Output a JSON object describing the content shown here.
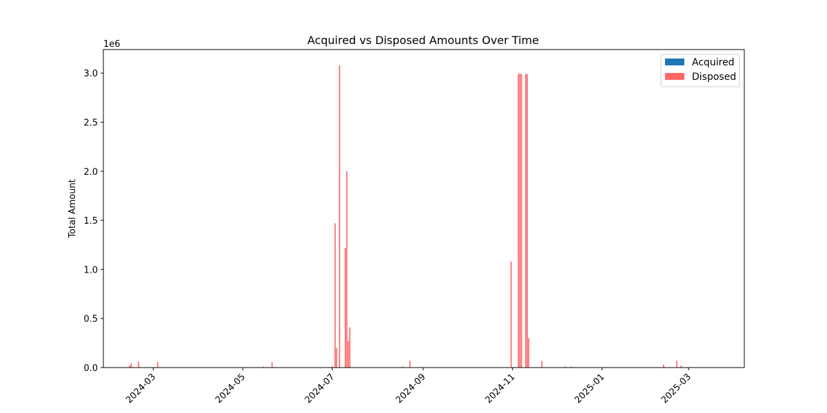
{
  "chart_data": {
    "type": "bar",
    "title": "Acquired vs Disposed Amounts Over Time",
    "xlabel": "",
    "ylabel": "Total Amount",
    "y_offset_label": "1e6",
    "xlim": [
      "2024-01-27",
      "2025-04-08"
    ],
    "ylim": [
      0,
      3240000
    ],
    "x_ticks": [
      {
        "date": "2024-03-01",
        "label": "2024-03"
      },
      {
        "date": "2024-05-01",
        "label": "2024-05"
      },
      {
        "date": "2024-07-01",
        "label": "2024-07"
      },
      {
        "date": "2024-09-01",
        "label": "2024-09"
      },
      {
        "date": "2024-11-01",
        "label": "2024-11"
      },
      {
        "date": "2025-01-01",
        "label": "2025-01"
      },
      {
        "date": "2025-03-01",
        "label": "2025-03"
      }
    ],
    "y_ticks": [
      {
        "value": 0,
        "label": "0.0"
      },
      {
        "value": 500000,
        "label": "0.5"
      },
      {
        "value": 1000000,
        "label": "1.0"
      },
      {
        "value": 1500000,
        "label": "1.5"
      },
      {
        "value": 2000000,
        "label": "2.0"
      },
      {
        "value": 2500000,
        "label": "2.5"
      },
      {
        "value": 3000000,
        "label": "3.0"
      }
    ],
    "grid": false,
    "legend_position": "top-right",
    "series": [
      {
        "name": "Acquired",
        "color": "#1f77b4",
        "points": []
      },
      {
        "name": "Disposed",
        "color": "#ff6666",
        "points": [
          {
            "x": "2024-02-14",
            "y": 20000
          },
          {
            "x": "2024-02-15",
            "y": 45000
          },
          {
            "x": "2024-02-20",
            "y": 60000
          },
          {
            "x": "2024-03-04",
            "y": 55000
          },
          {
            "x": "2024-05-15",
            "y": 10000
          },
          {
            "x": "2024-05-21",
            "y": 55000
          },
          {
            "x": "2024-07-01",
            "y": 10000
          },
          {
            "x": "2024-07-03",
            "y": 1470000
          },
          {
            "x": "2024-07-04",
            "y": 200000
          },
          {
            "x": "2024-07-06",
            "y": 3080000
          },
          {
            "x": "2024-07-10",
            "y": 1220000
          },
          {
            "x": "2024-07-11",
            "y": 2000000
          },
          {
            "x": "2024-07-12",
            "y": 270000
          },
          {
            "x": "2024-07-13",
            "y": 410000
          },
          {
            "x": "2024-08-18",
            "y": 10000
          },
          {
            "x": "2024-08-23",
            "y": 70000
          },
          {
            "x": "2024-10-31",
            "y": 1080000
          },
          {
            "x": "2024-11-05",
            "y": 2990000
          },
          {
            "x": "2024-11-06",
            "y": 3000000
          },
          {
            "x": "2024-11-07",
            "y": 2990000
          },
          {
            "x": "2024-11-10",
            "y": 2990000
          },
          {
            "x": "2024-11-11",
            "y": 2990000
          },
          {
            "x": "2024-11-12",
            "y": 300000
          },
          {
            "x": "2024-11-21",
            "y": 70000
          },
          {
            "x": "2024-12-07",
            "y": 10000
          },
          {
            "x": "2024-12-11",
            "y": 10000
          },
          {
            "x": "2025-02-12",
            "y": 30000
          },
          {
            "x": "2025-02-21",
            "y": 70000
          },
          {
            "x": "2025-02-24",
            "y": 20000
          }
        ]
      }
    ]
  }
}
